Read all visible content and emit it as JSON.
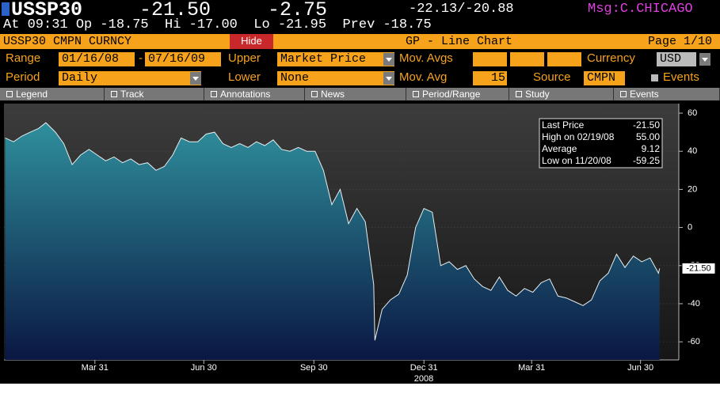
{
  "header": {
    "ticker": "USSP30",
    "last": "-21.50",
    "change": "-2.75",
    "bid_ask": "-22.13/-20.88",
    "msg": "Msg:C.CHICAGO",
    "line2": "At 09:31 Op -18.75  Hi -17.00  Lo -21.95  Prev -18.75"
  },
  "title_bar": {
    "security": "USSP30 CMPN CURNCY",
    "hide": "Hide",
    "function": "GP - Line Chart",
    "page": "Page 1/10"
  },
  "settings": {
    "range_label": "Range",
    "start": "01/16/08",
    "dash": "-",
    "end": "07/16/09",
    "upper_label": "Upper",
    "upper": "Market Price",
    "mov_avgs_label": "Mov. Avgs",
    "currency_label": "Currency",
    "currency": "USD",
    "period_label": "Period",
    "period": "Daily",
    "lower_label": "Lower",
    "lower": "None",
    "mov_avg_label": "Mov. Avg",
    "mov_avg": "15",
    "source_label": "Source",
    "source": "CMPN",
    "events_label": "Events"
  },
  "toolbar": [
    "Legend",
    "Track",
    "Annotations",
    "News",
    "Period/Range",
    "Study",
    "Events"
  ],
  "chart_data": {
    "type": "area",
    "x": [
      "2008-01-16",
      "2008-01-23",
      "2008-01-30",
      "2008-02-06",
      "2008-02-13",
      "2008-02-19",
      "2008-02-27",
      "2008-03-05",
      "2008-03-12",
      "2008-03-19",
      "2008-03-26",
      "2008-04-02",
      "2008-04-09",
      "2008-04-16",
      "2008-04-23",
      "2008-04-30",
      "2008-05-07",
      "2008-05-14",
      "2008-05-21",
      "2008-05-28",
      "2008-06-04",
      "2008-06-11",
      "2008-06-18",
      "2008-06-25",
      "2008-07-02",
      "2008-07-09",
      "2008-07-16",
      "2008-07-23",
      "2008-07-30",
      "2008-08-06",
      "2008-08-13",
      "2008-08-20",
      "2008-08-27",
      "2008-09-03",
      "2008-09-10",
      "2008-09-17",
      "2008-09-24",
      "2008-10-01",
      "2008-10-08",
      "2008-10-15",
      "2008-10-22",
      "2008-10-29",
      "2008-11-05",
      "2008-11-12",
      "2008-11-19",
      "2008-11-20",
      "2008-11-26",
      "2008-12-03",
      "2008-12-10",
      "2008-12-17",
      "2008-12-24",
      "2008-12-31",
      "2009-01-07",
      "2009-01-14",
      "2009-01-21",
      "2009-01-28",
      "2009-02-04",
      "2009-02-11",
      "2009-02-18",
      "2009-02-25",
      "2009-03-04",
      "2009-03-11",
      "2009-03-18",
      "2009-03-25",
      "2009-04-01",
      "2009-04-08",
      "2009-04-15",
      "2009-04-22",
      "2009-04-29",
      "2009-05-06",
      "2009-05-13",
      "2009-05-20",
      "2009-05-27",
      "2009-06-03",
      "2009-06-10",
      "2009-06-17",
      "2009-06-24",
      "2009-07-01",
      "2009-07-08",
      "2009-07-15",
      "2009-07-16"
    ],
    "values": [
      47,
      45,
      48,
      50,
      52,
      55,
      50,
      44,
      33,
      38,
      41,
      38,
      35,
      37,
      34,
      36,
      33,
      34,
      30,
      32,
      38,
      47,
      45,
      45,
      49,
      50,
      44,
      42,
      44,
      42,
      45,
      43,
      46,
      41,
      40,
      42,
      40,
      40,
      30,
      12,
      20,
      2,
      10,
      3,
      -30,
      -59.25,
      -43,
      -38,
      -35,
      -25,
      0,
      10,
      8,
      -20,
      -18,
      -22,
      -20,
      -27,
      -31,
      -33,
      -26,
      -33,
      -36,
      -32,
      -34,
      -29,
      -27,
      -36,
      -37,
      -39,
      -41,
      -38,
      -28,
      -24,
      -14,
      -21,
      -15,
      -18,
      -16,
      -24,
      -21.5
    ],
    "color": "#e6eef0",
    "area_gradient": [
      "#2f8f9c",
      "#0a1742"
    ],
    "xlim": [
      "2008-01-15",
      "2009-08-01"
    ],
    "xticks": [
      {
        "value": "2008-03-31",
        "label": "Mar 31"
      },
      {
        "value": "2008-06-30",
        "label": "Jun 30"
      },
      {
        "value": "2008-09-30",
        "label": "Sep 30"
      },
      {
        "value": "2008-12-31",
        "label": "Dec 31"
      },
      {
        "value": "2009-03-31",
        "label": "Mar 31"
      },
      {
        "value": "2009-06-30",
        "label": "Jun 30"
      }
    ],
    "year_label": "2008",
    "ylim": [
      -69.5,
      65
    ],
    "yticks": [
      60,
      40,
      20,
      0,
      -20,
      -40,
      -60
    ],
    "grid": true,
    "stats": [
      {
        "label": "Last Price",
        "value": -21.5,
        "value_label": "-21.50"
      },
      {
        "label": "High on 02/19/08",
        "value": 55,
        "value_label": "55.00"
      },
      {
        "label": "Average",
        "value": 9.12,
        "value_label": "9.12"
      },
      {
        "label": "Low on 11/20/08",
        "value": -59.25,
        "value_label": "-59.25"
      }
    ]
  }
}
